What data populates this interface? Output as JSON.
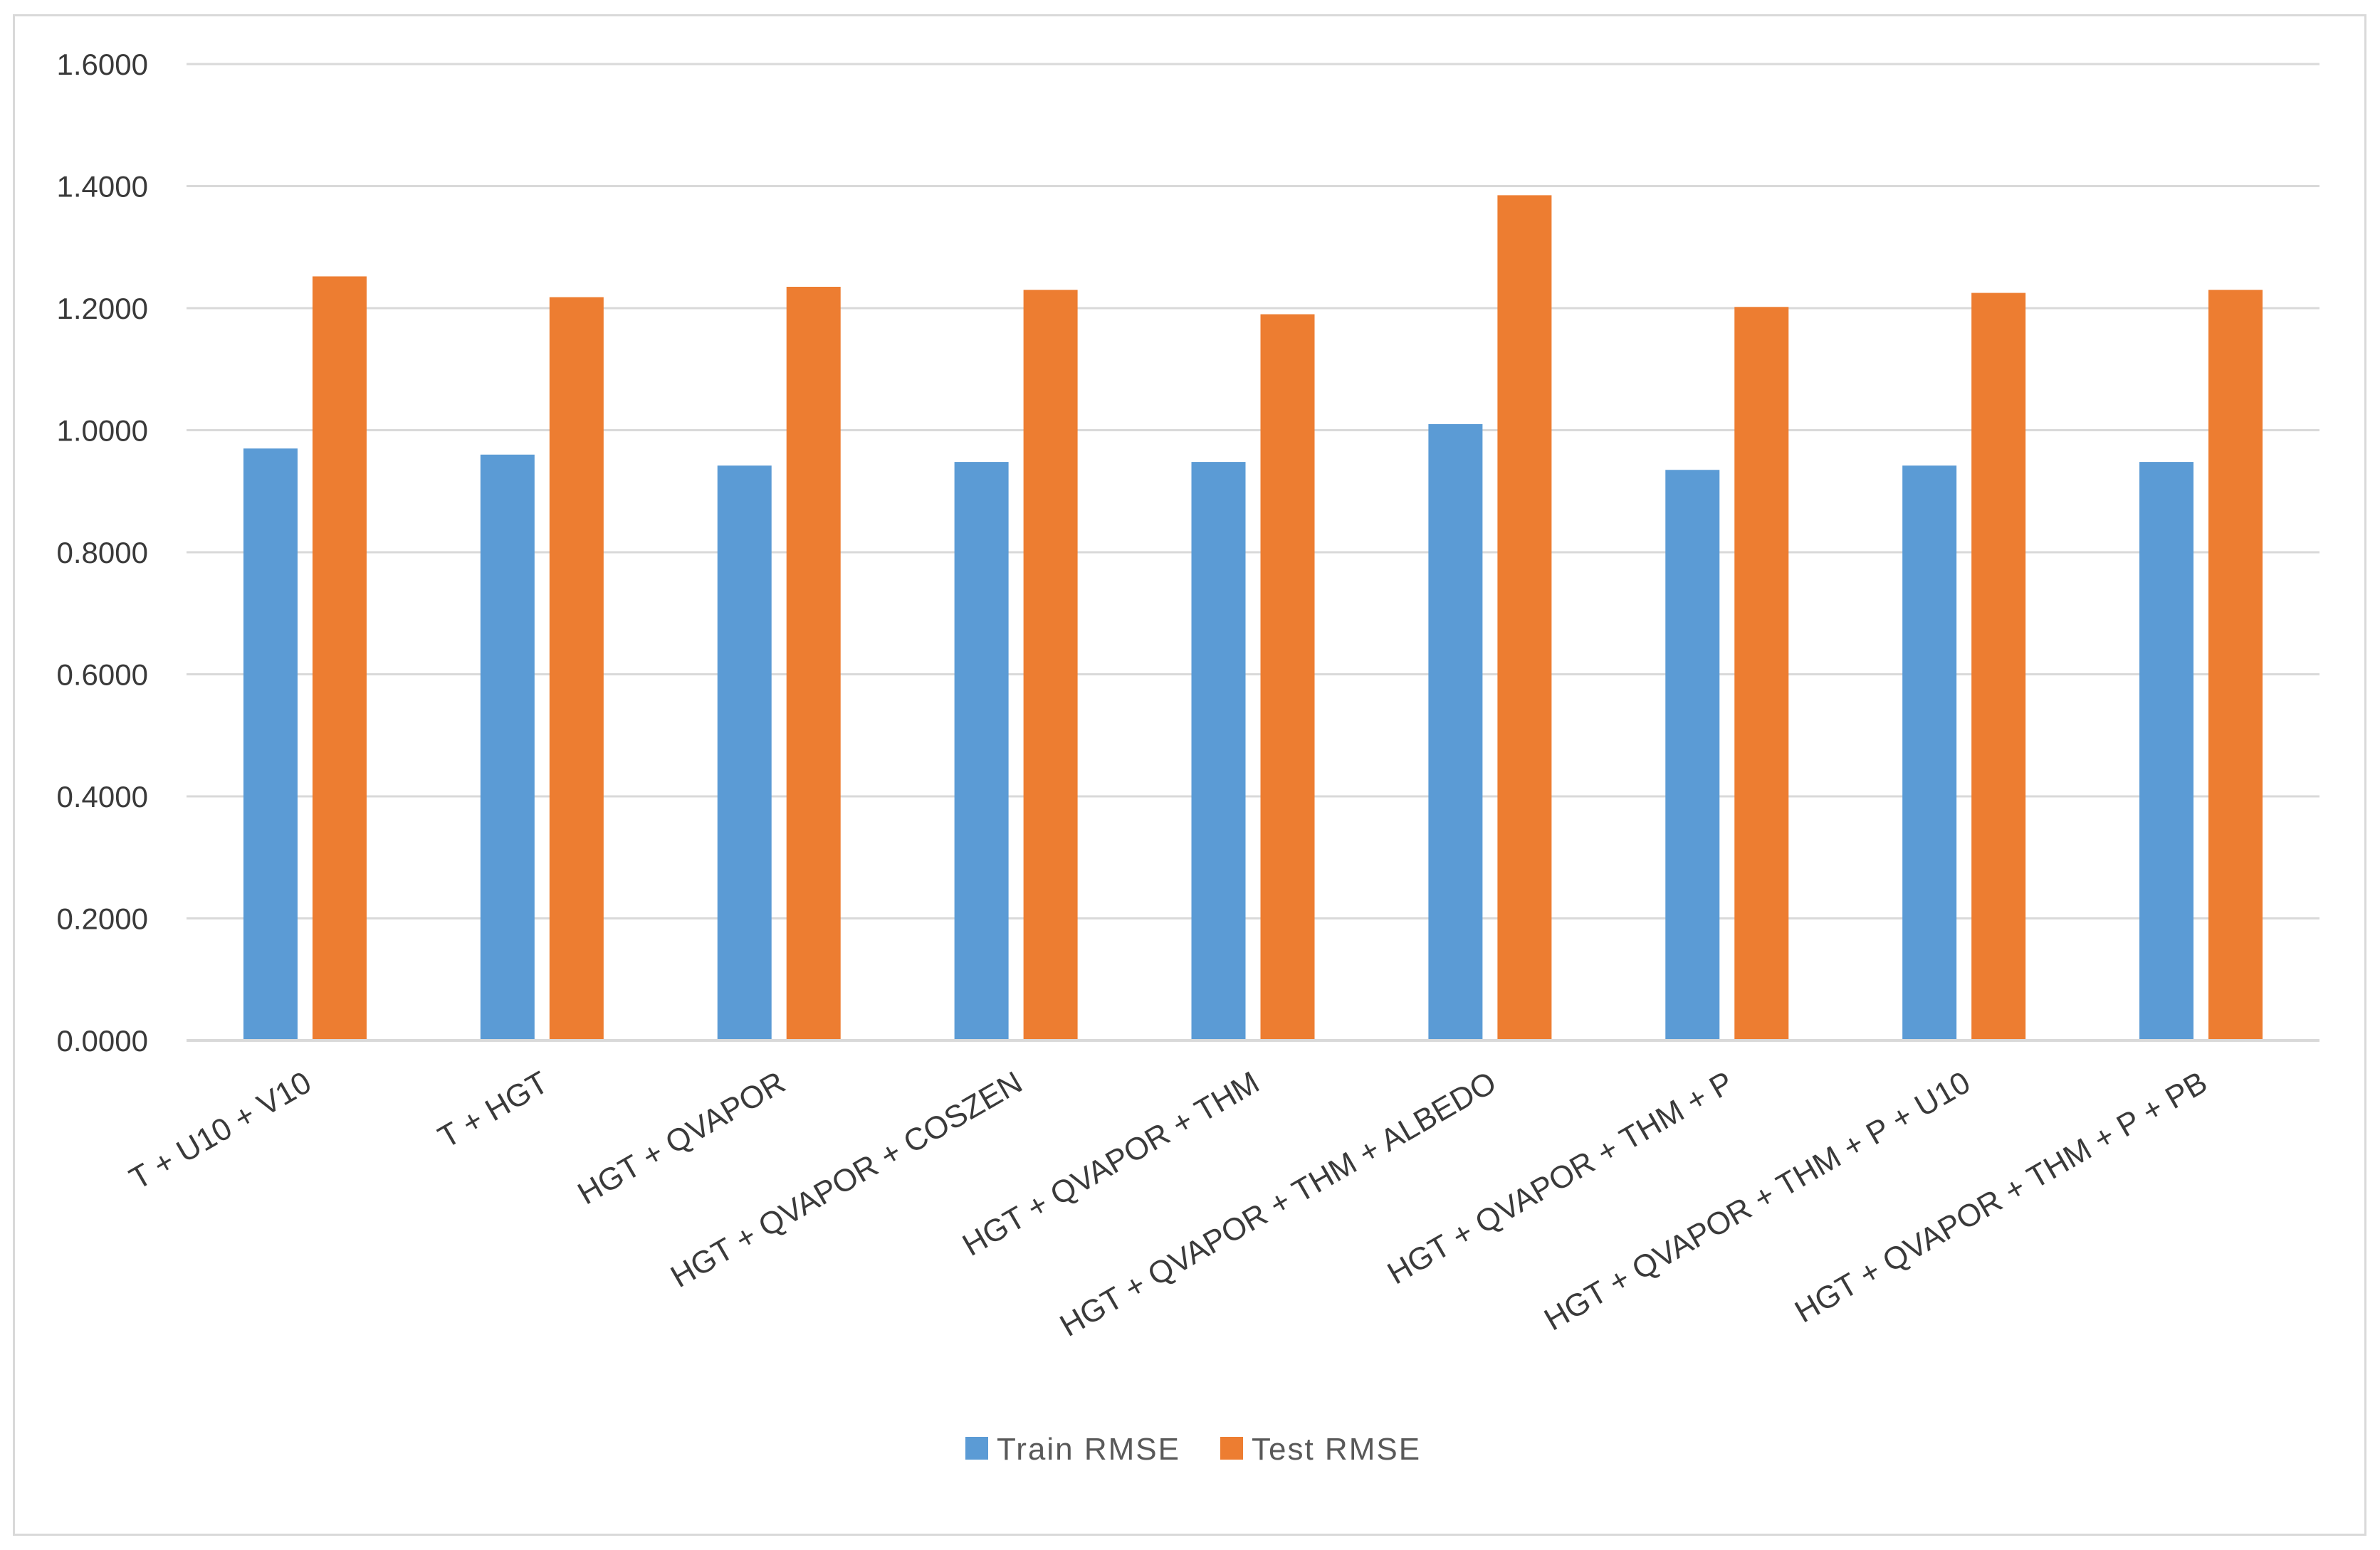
{
  "chart_data": {
    "type": "bar",
    "title": "",
    "xlabel": "",
    "ylabel": "",
    "ylim": [
      0,
      1.6
    ],
    "y_ticks": [
      "0.0000",
      "0.2000",
      "0.4000",
      "0.6000",
      "0.8000",
      "1.0000",
      "1.2000",
      "1.4000",
      "1.6000"
    ],
    "grid": true,
    "legend_position": "bottom",
    "categories": [
      "T + U10 + V10",
      "T + HGT",
      "HGT + QVAPOR",
      "HGT + QVAPOR + COSZEN",
      "HGT + QVAPOR + THM",
      "HGT + QVAPOR + THM + ALBEDO",
      "HGT + QVAPOR + THM + P",
      "HGT + QVAPOR + THM + P + U10",
      "HGT + QVAPOR + THM + P + PB"
    ],
    "series": [
      {
        "name": "Train RMSE",
        "color": "#5b9bd5",
        "values": [
          0.97,
          0.96,
          0.942,
          0.948,
          0.948,
          1.01,
          0.935,
          0.942,
          0.948
        ]
      },
      {
        "name": "Test RMSE",
        "color": "#ed7d31",
        "values": [
          1.252,
          1.218,
          1.235,
          1.23,
          1.19,
          1.385,
          1.202,
          1.225,
          1.23
        ]
      }
    ]
  }
}
